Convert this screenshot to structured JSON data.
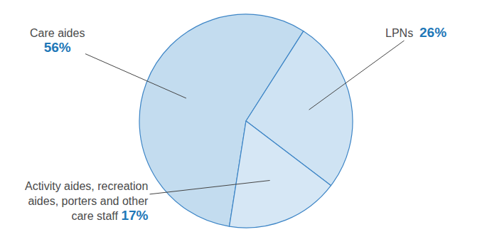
{
  "chart_data": {
    "type": "pie",
    "categories": [
      "Care aides",
      "LPNs",
      "Activity aides, recreation aides, porters and other care staff"
    ],
    "values": [
      56,
      26,
      17
    ],
    "value_labels": [
      "56%",
      "26%",
      "17%"
    ],
    "colors": [
      "#c3dcef",
      "#cfe3f3",
      "#d6e7f5"
    ],
    "data_labels": true
  }
}
